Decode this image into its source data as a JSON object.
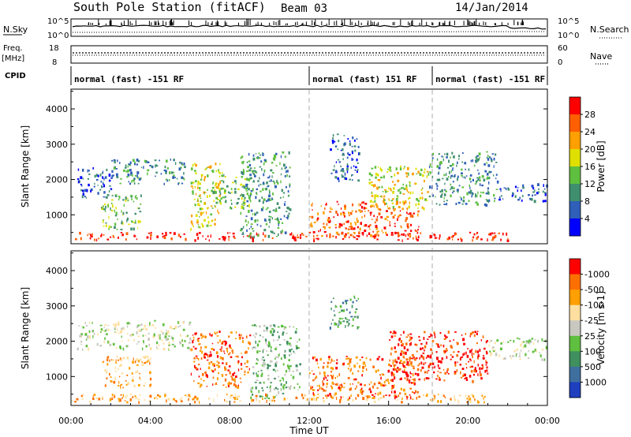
{
  "header": {
    "station": "South Pole Station (fitACF)",
    "beam": "Beam 03",
    "date": "14/Jan/2014"
  },
  "top_panels": {
    "nsky_label": "N.Sky",
    "nsky_ticks": [
      "10^5",
      "10^0"
    ],
    "nsearch_label": "N.Search",
    "nsearch_ticks": [
      "10^5",
      "10^0"
    ],
    "freq_label_1": "Freq.",
    "freq_label_2": "[MHz]",
    "freq_ticks": [
      "18",
      "8"
    ],
    "nave_label": "Nave",
    "nave_ticks": [
      "60",
      "0"
    ],
    "cpid_label": "CPID",
    "cpid_segments": [
      {
        "label": "normal (fast) -151 RF",
        "start_hour": 0
      },
      {
        "label": "normal (fast) 151 RF",
        "start_hour": 12
      },
      {
        "label": "normal (fast) -151 RF",
        "start_hour": 18.2
      }
    ]
  },
  "chart_data": [
    {
      "type": "heatmap",
      "name": "power-panel",
      "ylabel": "Slant Range [km]",
      "xlabel": "",
      "xlim": [
        0,
        24
      ],
      "ylim": [
        180,
        4560
      ],
      "yticks": [
        1000,
        2000,
        3000,
        4000
      ],
      "colorbar": {
        "label": "Power [dB]",
        "ticks": [
          "4",
          "8",
          "12",
          "16",
          "20",
          "24",
          "28"
        ],
        "colors": [
          "#0000ff",
          "#2f5fb8",
          "#3f8f6f",
          "#5fbf3f",
          "#dfdf00",
          "#ff9f00",
          "#ff5f00",
          "#ff0000"
        ]
      },
      "echo_regions": [
        {
          "t0": 0.0,
          "t1": 22.0,
          "r0": 300,
          "r1": 520,
          "level": 7
        },
        {
          "t0": 0.3,
          "t1": 2.0,
          "r0": 1500,
          "r1": 2400,
          "level": 1
        },
        {
          "t0": 1.5,
          "t1": 3.5,
          "r0": 600,
          "r1": 1600,
          "level": 3
        },
        {
          "t0": 2.0,
          "t1": 5.8,
          "r0": 1900,
          "r1": 2600,
          "level": 2
        },
        {
          "t0": 6.0,
          "t1": 7.5,
          "r0": 600,
          "r1": 2500,
          "level": 4
        },
        {
          "t0": 7.0,
          "t1": 9.0,
          "r0": 1200,
          "r1": 2300,
          "level": 3
        },
        {
          "t0": 8.5,
          "t1": 11.0,
          "r0": 400,
          "r1": 2800,
          "level": 2
        },
        {
          "t0": 12.0,
          "t1": 17.5,
          "r0": 400,
          "r1": 1400,
          "level": 6
        },
        {
          "t0": 13.0,
          "t1": 14.5,
          "r0": 2000,
          "r1": 3300,
          "level": 1
        },
        {
          "t0": 15.0,
          "t1": 18.0,
          "r0": 1200,
          "r1": 2400,
          "level": 4
        },
        {
          "t0": 18.0,
          "t1": 21.5,
          "r0": 1300,
          "r1": 2800,
          "level": 2
        },
        {
          "t0": 21.5,
          "t1": 24.0,
          "r0": 1400,
          "r1": 1900,
          "level": 1
        }
      ]
    },
    {
      "type": "heatmap",
      "name": "velocity-panel",
      "ylabel": "Slant Range [km]",
      "xlabel": "Time UT",
      "xlim": [
        0,
        24
      ],
      "ylim": [
        180,
        4560
      ],
      "yticks": [
        1000,
        2000,
        3000,
        4000
      ],
      "xticks": [
        "00:00",
        "04:00",
        "08:00",
        "12:00",
        "16:00",
        "20:00",
        "00:00"
      ],
      "colorbar": {
        "label": "Velocity [m s-1]",
        "ticks": [
          "1000",
          "500",
          "100",
          "25",
          "-25",
          "-100",
          "-500",
          "-1000"
        ],
        "colors": [
          "#1f3fbf",
          "#3f6f9f",
          "#3f8f5f",
          "#5fbf3f",
          "#c8c8c0",
          "#ffdf9f",
          "#ff9f00",
          "#ff6f00",
          "#ff0000"
        ]
      },
      "echo_regions": [
        {
          "t0": 0.0,
          "t1": 21.0,
          "r0": 300,
          "r1": 520,
          "level": 6
        },
        {
          "t0": 0.3,
          "t1": 6.0,
          "r0": 1800,
          "r1": 2600,
          "level": 4
        },
        {
          "t0": 1.5,
          "t1": 4.0,
          "r0": 700,
          "r1": 1600,
          "level": 6
        },
        {
          "t0": 6.0,
          "t1": 9.0,
          "r0": 700,
          "r1": 2300,
          "level": 7
        },
        {
          "t0": 9.0,
          "t1": 11.5,
          "r0": 400,
          "r1": 2500,
          "level": 3
        },
        {
          "t0": 12.0,
          "t1": 17.5,
          "r0": 400,
          "r1": 1600,
          "level": 7
        },
        {
          "t0": 13.0,
          "t1": 14.5,
          "r0": 2400,
          "r1": 3300,
          "level": 2
        },
        {
          "t0": 16.0,
          "t1": 21.0,
          "r0": 900,
          "r1": 2300,
          "level": 8
        },
        {
          "t0": 21.0,
          "t1": 24.0,
          "r0": 1500,
          "r1": 2100,
          "level": 4
        }
      ]
    }
  ]
}
